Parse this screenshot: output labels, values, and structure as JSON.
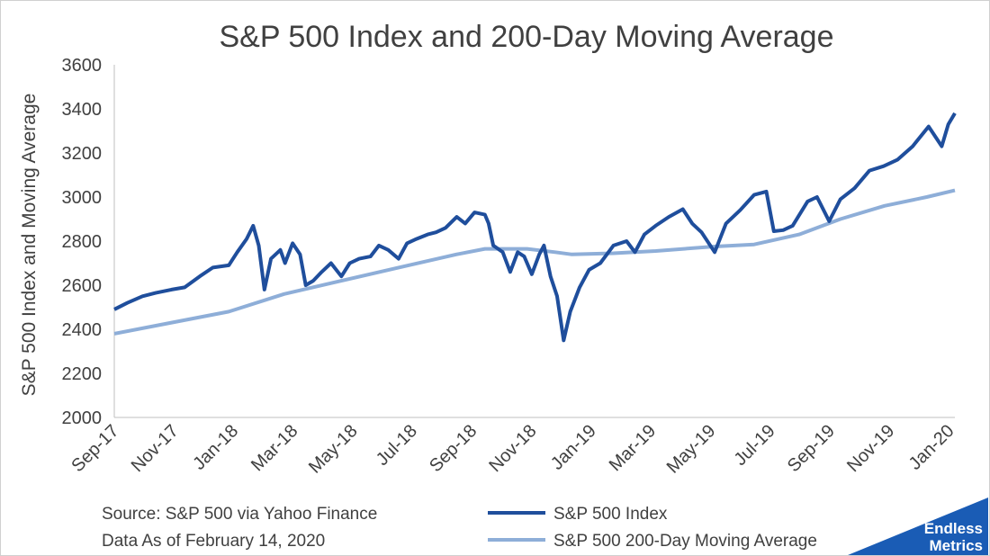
{
  "chart_data": {
    "type": "line",
    "title": "S&P 500 Index and 200-Day Moving Average",
    "ylabel": "S&P 500 Index and Moving Average",
    "ylim": [
      2000,
      3600
    ],
    "y_ticks": [
      "2000",
      "2200",
      "2400",
      "2600",
      "2800",
      "3000",
      "3200",
      "3400",
      "3600"
    ],
    "x_ticks": [
      "Sep-17",
      "Nov-17",
      "Jan-18",
      "Mar-18",
      "May-18",
      "Jul-18",
      "Sep-18",
      "Nov-18",
      "Jan-19",
      "Mar-19",
      "May-19",
      "Jul-19",
      "Sep-19",
      "Nov-19",
      "Jan-20"
    ],
    "x_range": [
      "2017-09-01",
      "2020-02-14"
    ],
    "series": [
      {
        "name": "S&P 500 Index",
        "color": "#1f4e9c",
        "points": [
          [
            "2017-09-01",
            2490
          ],
          [
            "2017-09-15",
            2520
          ],
          [
            "2017-10-01",
            2550
          ],
          [
            "2017-10-15",
            2565
          ],
          [
            "2017-11-01",
            2580
          ],
          [
            "2017-11-15",
            2590
          ],
          [
            "2017-12-01",
            2640
          ],
          [
            "2017-12-15",
            2680
          ],
          [
            "2018-01-01",
            2690
          ],
          [
            "2018-01-10",
            2750
          ],
          [
            "2018-01-20",
            2810
          ],
          [
            "2018-01-27",
            2870
          ],
          [
            "2018-02-02",
            2780
          ],
          [
            "2018-02-08",
            2580
          ],
          [
            "2018-02-15",
            2720
          ],
          [
            "2018-02-25",
            2760
          ],
          [
            "2018-03-02",
            2700
          ],
          [
            "2018-03-10",
            2790
          ],
          [
            "2018-03-18",
            2740
          ],
          [
            "2018-03-24",
            2600
          ],
          [
            "2018-04-01",
            2620
          ],
          [
            "2018-04-10",
            2660
          ],
          [
            "2018-04-20",
            2700
          ],
          [
            "2018-05-01",
            2640
          ],
          [
            "2018-05-10",
            2700
          ],
          [
            "2018-05-20",
            2720
          ],
          [
            "2018-06-01",
            2730
          ],
          [
            "2018-06-10",
            2780
          ],
          [
            "2018-06-20",
            2760
          ],
          [
            "2018-07-01",
            2720
          ],
          [
            "2018-07-10",
            2790
          ],
          [
            "2018-07-20",
            2810
          ],
          [
            "2018-08-01",
            2830
          ],
          [
            "2018-08-10",
            2840
          ],
          [
            "2018-08-20",
            2860
          ],
          [
            "2018-09-01",
            2910
          ],
          [
            "2018-09-10",
            2880
          ],
          [
            "2018-09-20",
            2930
          ],
          [
            "2018-10-01",
            2920
          ],
          [
            "2018-10-05",
            2880
          ],
          [
            "2018-10-10",
            2780
          ],
          [
            "2018-10-20",
            2750
          ],
          [
            "2018-10-28",
            2660
          ],
          [
            "2018-11-05",
            2750
          ],
          [
            "2018-11-12",
            2730
          ],
          [
            "2018-11-20",
            2650
          ],
          [
            "2018-11-28",
            2740
          ],
          [
            "2018-12-03",
            2780
          ],
          [
            "2018-12-10",
            2640
          ],
          [
            "2018-12-17",
            2550
          ],
          [
            "2018-12-24",
            2350
          ],
          [
            "2018-12-31",
            2480
          ],
          [
            "2019-01-10",
            2590
          ],
          [
            "2019-01-20",
            2670
          ],
          [
            "2019-02-01",
            2700
          ],
          [
            "2019-02-15",
            2780
          ],
          [
            "2019-03-01",
            2800
          ],
          [
            "2019-03-10",
            2750
          ],
          [
            "2019-03-20",
            2830
          ],
          [
            "2019-04-01",
            2870
          ],
          [
            "2019-04-15",
            2910
          ],
          [
            "2019-04-30",
            2945
          ],
          [
            "2019-05-10",
            2880
          ],
          [
            "2019-05-20",
            2840
          ],
          [
            "2019-06-03",
            2750
          ],
          [
            "2019-06-15",
            2880
          ],
          [
            "2019-06-30",
            2940
          ],
          [
            "2019-07-15",
            3010
          ],
          [
            "2019-07-28",
            3025
          ],
          [
            "2019-08-05",
            2845
          ],
          [
            "2019-08-15",
            2850
          ],
          [
            "2019-08-25",
            2870
          ],
          [
            "2019-09-10",
            2980
          ],
          [
            "2019-09-20",
            3000
          ],
          [
            "2019-10-03",
            2890
          ],
          [
            "2019-10-15",
            2990
          ],
          [
            "2019-10-30",
            3040
          ],
          [
            "2019-11-15",
            3120
          ],
          [
            "2019-11-30",
            3140
          ],
          [
            "2019-12-15",
            3170
          ],
          [
            "2019-12-31",
            3230
          ],
          [
            "2020-01-17",
            3320
          ],
          [
            "2020-01-31",
            3230
          ],
          [
            "2020-02-07",
            3330
          ],
          [
            "2020-02-14",
            3380
          ]
        ]
      },
      {
        "name": "S&P 500 200-Day Moving Average",
        "color": "#8eaed8",
        "points": [
          [
            "2017-09-01",
            2380
          ],
          [
            "2017-11-01",
            2430
          ],
          [
            "2018-01-01",
            2480
          ],
          [
            "2018-03-01",
            2560
          ],
          [
            "2018-05-01",
            2620
          ],
          [
            "2018-07-01",
            2680
          ],
          [
            "2018-09-01",
            2740
          ],
          [
            "2018-10-01",
            2765
          ],
          [
            "2018-11-15",
            2765
          ],
          [
            "2018-12-15",
            2750
          ],
          [
            "2019-01-01",
            2740
          ],
          [
            "2019-02-15",
            2745
          ],
          [
            "2019-04-01",
            2755
          ],
          [
            "2019-06-01",
            2775
          ],
          [
            "2019-07-15",
            2785
          ],
          [
            "2019-09-01",
            2830
          ],
          [
            "2019-10-15",
            2900
          ],
          [
            "2019-12-01",
            2960
          ],
          [
            "2020-01-15",
            3000
          ],
          [
            "2020-02-14",
            3030
          ]
        ]
      }
    ],
    "legend_position": "bottom",
    "grid": false
  },
  "notes": {
    "source": "Source: S&P 500 via Yahoo Finance",
    "date": "Data As of February 14, 2020"
  },
  "brand": {
    "line1": "Endless",
    "line2": "Metrics",
    "color": "#1a5cb5"
  }
}
